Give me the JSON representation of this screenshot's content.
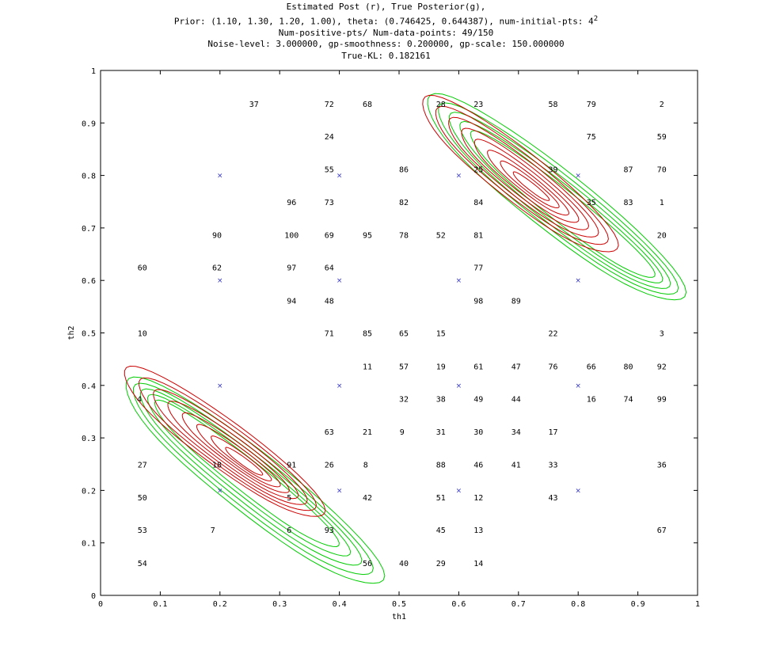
{
  "chart_data": {
    "type": "contour",
    "title_lines": [
      "Estimated Post (r), True Posterior(g),",
      "Prior: (1.10, 1.30, 1.20, 1.00), theta: (0.746425, 0.644387), num-initial-pts: 4",
      "Num-positive-pts/ Num-data-points: 49/150",
      "Noise-level: 3.000000, gp-smoothness: 0.200000, gp-scale: 150.000000",
      "True-KL: 0.182161"
    ],
    "title_superscript": "2",
    "xlabel": "th1",
    "ylabel": "th2",
    "xlim": [
      0,
      1
    ],
    "ylim": [
      0,
      1
    ],
    "xticks": [
      "0",
      "0.1",
      "0.2",
      "0.3",
      "0.4",
      "0.5",
      "0.6",
      "0.7",
      "0.8",
      "0.9",
      "1"
    ],
    "yticks": [
      "0",
      "0.1",
      "0.2",
      "0.3",
      "0.4",
      "0.5",
      "0.6",
      "0.7",
      "0.8",
      "0.9",
      "1"
    ],
    "colors": {
      "estimated": "#cc0000",
      "true": "#00cc00",
      "marker": "#3333cc"
    },
    "series": [
      {
        "name": "Estimated Post (r)",
        "color": "#cc0000",
        "kind": "contour"
      },
      {
        "name": "True Posterior(g)",
        "color": "#00cc00",
        "kind": "contour"
      }
    ],
    "initial_points": [
      [
        0.2,
        0.8
      ],
      [
        0.4,
        0.8
      ],
      [
        0.6,
        0.8
      ],
      [
        0.8,
        0.8
      ],
      [
        0.2,
        0.6
      ],
      [
        0.4,
        0.6
      ],
      [
        0.6,
        0.6
      ],
      [
        0.8,
        0.6
      ],
      [
        0.2,
        0.4
      ],
      [
        0.4,
        0.4
      ],
      [
        0.6,
        0.4
      ],
      [
        0.8,
        0.4
      ],
      [
        0.2,
        0.2
      ],
      [
        0.4,
        0.2
      ],
      [
        0.6,
        0.2
      ],
      [
        0.8,
        0.2
      ]
    ],
    "numbered_points": [
      {
        "label": "37",
        "x": 0.257,
        "y": 0.937
      },
      {
        "label": "72",
        "x": 0.383,
        "y": 0.937
      },
      {
        "label": "68",
        "x": 0.447,
        "y": 0.937
      },
      {
        "label": "28",
        "x": 0.57,
        "y": 0.937
      },
      {
        "label": "23",
        "x": 0.633,
        "y": 0.937
      },
      {
        "label": "58",
        "x": 0.758,
        "y": 0.937
      },
      {
        "label": "79",
        "x": 0.822,
        "y": 0.937
      },
      {
        "label": "2",
        "x": 0.94,
        "y": 0.937
      },
      {
        "label": "24",
        "x": 0.383,
        "y": 0.875
      },
      {
        "label": "75",
        "x": 0.822,
        "y": 0.875
      },
      {
        "label": "59",
        "x": 0.94,
        "y": 0.875
      },
      {
        "label": "55",
        "x": 0.383,
        "y": 0.812
      },
      {
        "label": "86",
        "x": 0.508,
        "y": 0.812
      },
      {
        "label": "25",
        "x": 0.633,
        "y": 0.812
      },
      {
        "label": "39",
        "x": 0.758,
        "y": 0.812
      },
      {
        "label": "87",
        "x": 0.884,
        "y": 0.812
      },
      {
        "label": "70",
        "x": 0.94,
        "y": 0.812
      },
      {
        "label": "96",
        "x": 0.32,
        "y": 0.75
      },
      {
        "label": "73",
        "x": 0.383,
        "y": 0.75
      },
      {
        "label": "82",
        "x": 0.508,
        "y": 0.75
      },
      {
        "label": "84",
        "x": 0.633,
        "y": 0.75
      },
      {
        "label": "35",
        "x": 0.822,
        "y": 0.75
      },
      {
        "label": "83",
        "x": 0.884,
        "y": 0.75
      },
      {
        "label": "1",
        "x": 0.94,
        "y": 0.75
      },
      {
        "label": "90",
        "x": 0.195,
        "y": 0.687
      },
      {
        "label": "100",
        "x": 0.32,
        "y": 0.687
      },
      {
        "label": "69",
        "x": 0.383,
        "y": 0.687
      },
      {
        "label": "95",
        "x": 0.447,
        "y": 0.687
      },
      {
        "label": "78",
        "x": 0.508,
        "y": 0.687
      },
      {
        "label": "52",
        "x": 0.57,
        "y": 0.687
      },
      {
        "label": "81",
        "x": 0.633,
        "y": 0.687
      },
      {
        "label": "20",
        "x": 0.94,
        "y": 0.687
      },
      {
        "label": "60",
        "x": 0.07,
        "y": 0.625
      },
      {
        "label": "62",
        "x": 0.195,
        "y": 0.625
      },
      {
        "label": "97",
        "x": 0.32,
        "y": 0.625
      },
      {
        "label": "64",
        "x": 0.383,
        "y": 0.625
      },
      {
        "label": "77",
        "x": 0.633,
        "y": 0.625
      },
      {
        "label": "94",
        "x": 0.32,
        "y": 0.562
      },
      {
        "label": "48",
        "x": 0.383,
        "y": 0.562
      },
      {
        "label": "98",
        "x": 0.633,
        "y": 0.562
      },
      {
        "label": "89",
        "x": 0.696,
        "y": 0.562
      },
      {
        "label": "10",
        "x": 0.07,
        "y": 0.5
      },
      {
        "label": "71",
        "x": 0.383,
        "y": 0.5
      },
      {
        "label": "85",
        "x": 0.447,
        "y": 0.5
      },
      {
        "label": "65",
        "x": 0.508,
        "y": 0.5
      },
      {
        "label": "15",
        "x": 0.57,
        "y": 0.5
      },
      {
        "label": "22",
        "x": 0.758,
        "y": 0.5
      },
      {
        "label": "3",
        "x": 0.94,
        "y": 0.5
      },
      {
        "label": "11",
        "x": 0.447,
        "y": 0.437
      },
      {
        "label": "57",
        "x": 0.508,
        "y": 0.437
      },
      {
        "label": "19",
        "x": 0.57,
        "y": 0.437
      },
      {
        "label": "61",
        "x": 0.633,
        "y": 0.437
      },
      {
        "label": "47",
        "x": 0.696,
        "y": 0.437
      },
      {
        "label": "76",
        "x": 0.758,
        "y": 0.437
      },
      {
        "label": "66",
        "x": 0.822,
        "y": 0.437
      },
      {
        "label": "80",
        "x": 0.884,
        "y": 0.437
      },
      {
        "label": "92",
        "x": 0.94,
        "y": 0.437
      },
      {
        "label": "4",
        "x": 0.065,
        "y": 0.375
      },
      {
        "label": "32",
        "x": 0.508,
        "y": 0.375
      },
      {
        "label": "38",
        "x": 0.57,
        "y": 0.375
      },
      {
        "label": "49",
        "x": 0.633,
        "y": 0.375
      },
      {
        "label": "44",
        "x": 0.696,
        "y": 0.375
      },
      {
        "label": "16",
        "x": 0.822,
        "y": 0.375
      },
      {
        "label": "74",
        "x": 0.884,
        "y": 0.375
      },
      {
        "label": "99",
        "x": 0.94,
        "y": 0.375
      },
      {
        "label": "63",
        "x": 0.383,
        "y": 0.312
      },
      {
        "label": "21",
        "x": 0.447,
        "y": 0.312
      },
      {
        "label": "9",
        "x": 0.505,
        "y": 0.312
      },
      {
        "label": "31",
        "x": 0.57,
        "y": 0.312
      },
      {
        "label": "30",
        "x": 0.633,
        "y": 0.312
      },
      {
        "label": "34",
        "x": 0.696,
        "y": 0.312
      },
      {
        "label": "17",
        "x": 0.758,
        "y": 0.312
      },
      {
        "label": "27",
        "x": 0.07,
        "y": 0.25
      },
      {
        "label": "18",
        "x": 0.195,
        "y": 0.25
      },
      {
        "label": "91",
        "x": 0.32,
        "y": 0.25
      },
      {
        "label": "26",
        "x": 0.383,
        "y": 0.25
      },
      {
        "label": "8",
        "x": 0.444,
        "y": 0.25
      },
      {
        "label": "88",
        "x": 0.57,
        "y": 0.25
      },
      {
        "label": "46",
        "x": 0.633,
        "y": 0.25
      },
      {
        "label": "41",
        "x": 0.696,
        "y": 0.25
      },
      {
        "label": "33",
        "x": 0.758,
        "y": 0.25
      },
      {
        "label": "36",
        "x": 0.94,
        "y": 0.25
      },
      {
        "label": "50",
        "x": 0.07,
        "y": 0.187
      },
      {
        "label": "5",
        "x": 0.316,
        "y": 0.187
      },
      {
        "label": "42",
        "x": 0.447,
        "y": 0.187
      },
      {
        "label": "51",
        "x": 0.57,
        "y": 0.187
      },
      {
        "label": "12",
        "x": 0.633,
        "y": 0.187
      },
      {
        "label": "43",
        "x": 0.758,
        "y": 0.187
      },
      {
        "label": "53",
        "x": 0.07,
        "y": 0.125
      },
      {
        "label": "7",
        "x": 0.188,
        "y": 0.125
      },
      {
        "label": "6",
        "x": 0.316,
        "y": 0.125
      },
      {
        "label": "93",
        "x": 0.383,
        "y": 0.125
      },
      {
        "label": "45",
        "x": 0.57,
        "y": 0.125
      },
      {
        "label": "13",
        "x": 0.633,
        "y": 0.125
      },
      {
        "label": "67",
        "x": 0.94,
        "y": 0.125
      },
      {
        "label": "54",
        "x": 0.07,
        "y": 0.062
      },
      {
        "label": "56",
        "x": 0.447,
        "y": 0.062
      },
      {
        "label": "40",
        "x": 0.508,
        "y": 0.062
      },
      {
        "label": "29",
        "x": 0.57,
        "y": 0.062
      },
      {
        "label": "14",
        "x": 0.633,
        "y": 0.062
      }
    ]
  }
}
